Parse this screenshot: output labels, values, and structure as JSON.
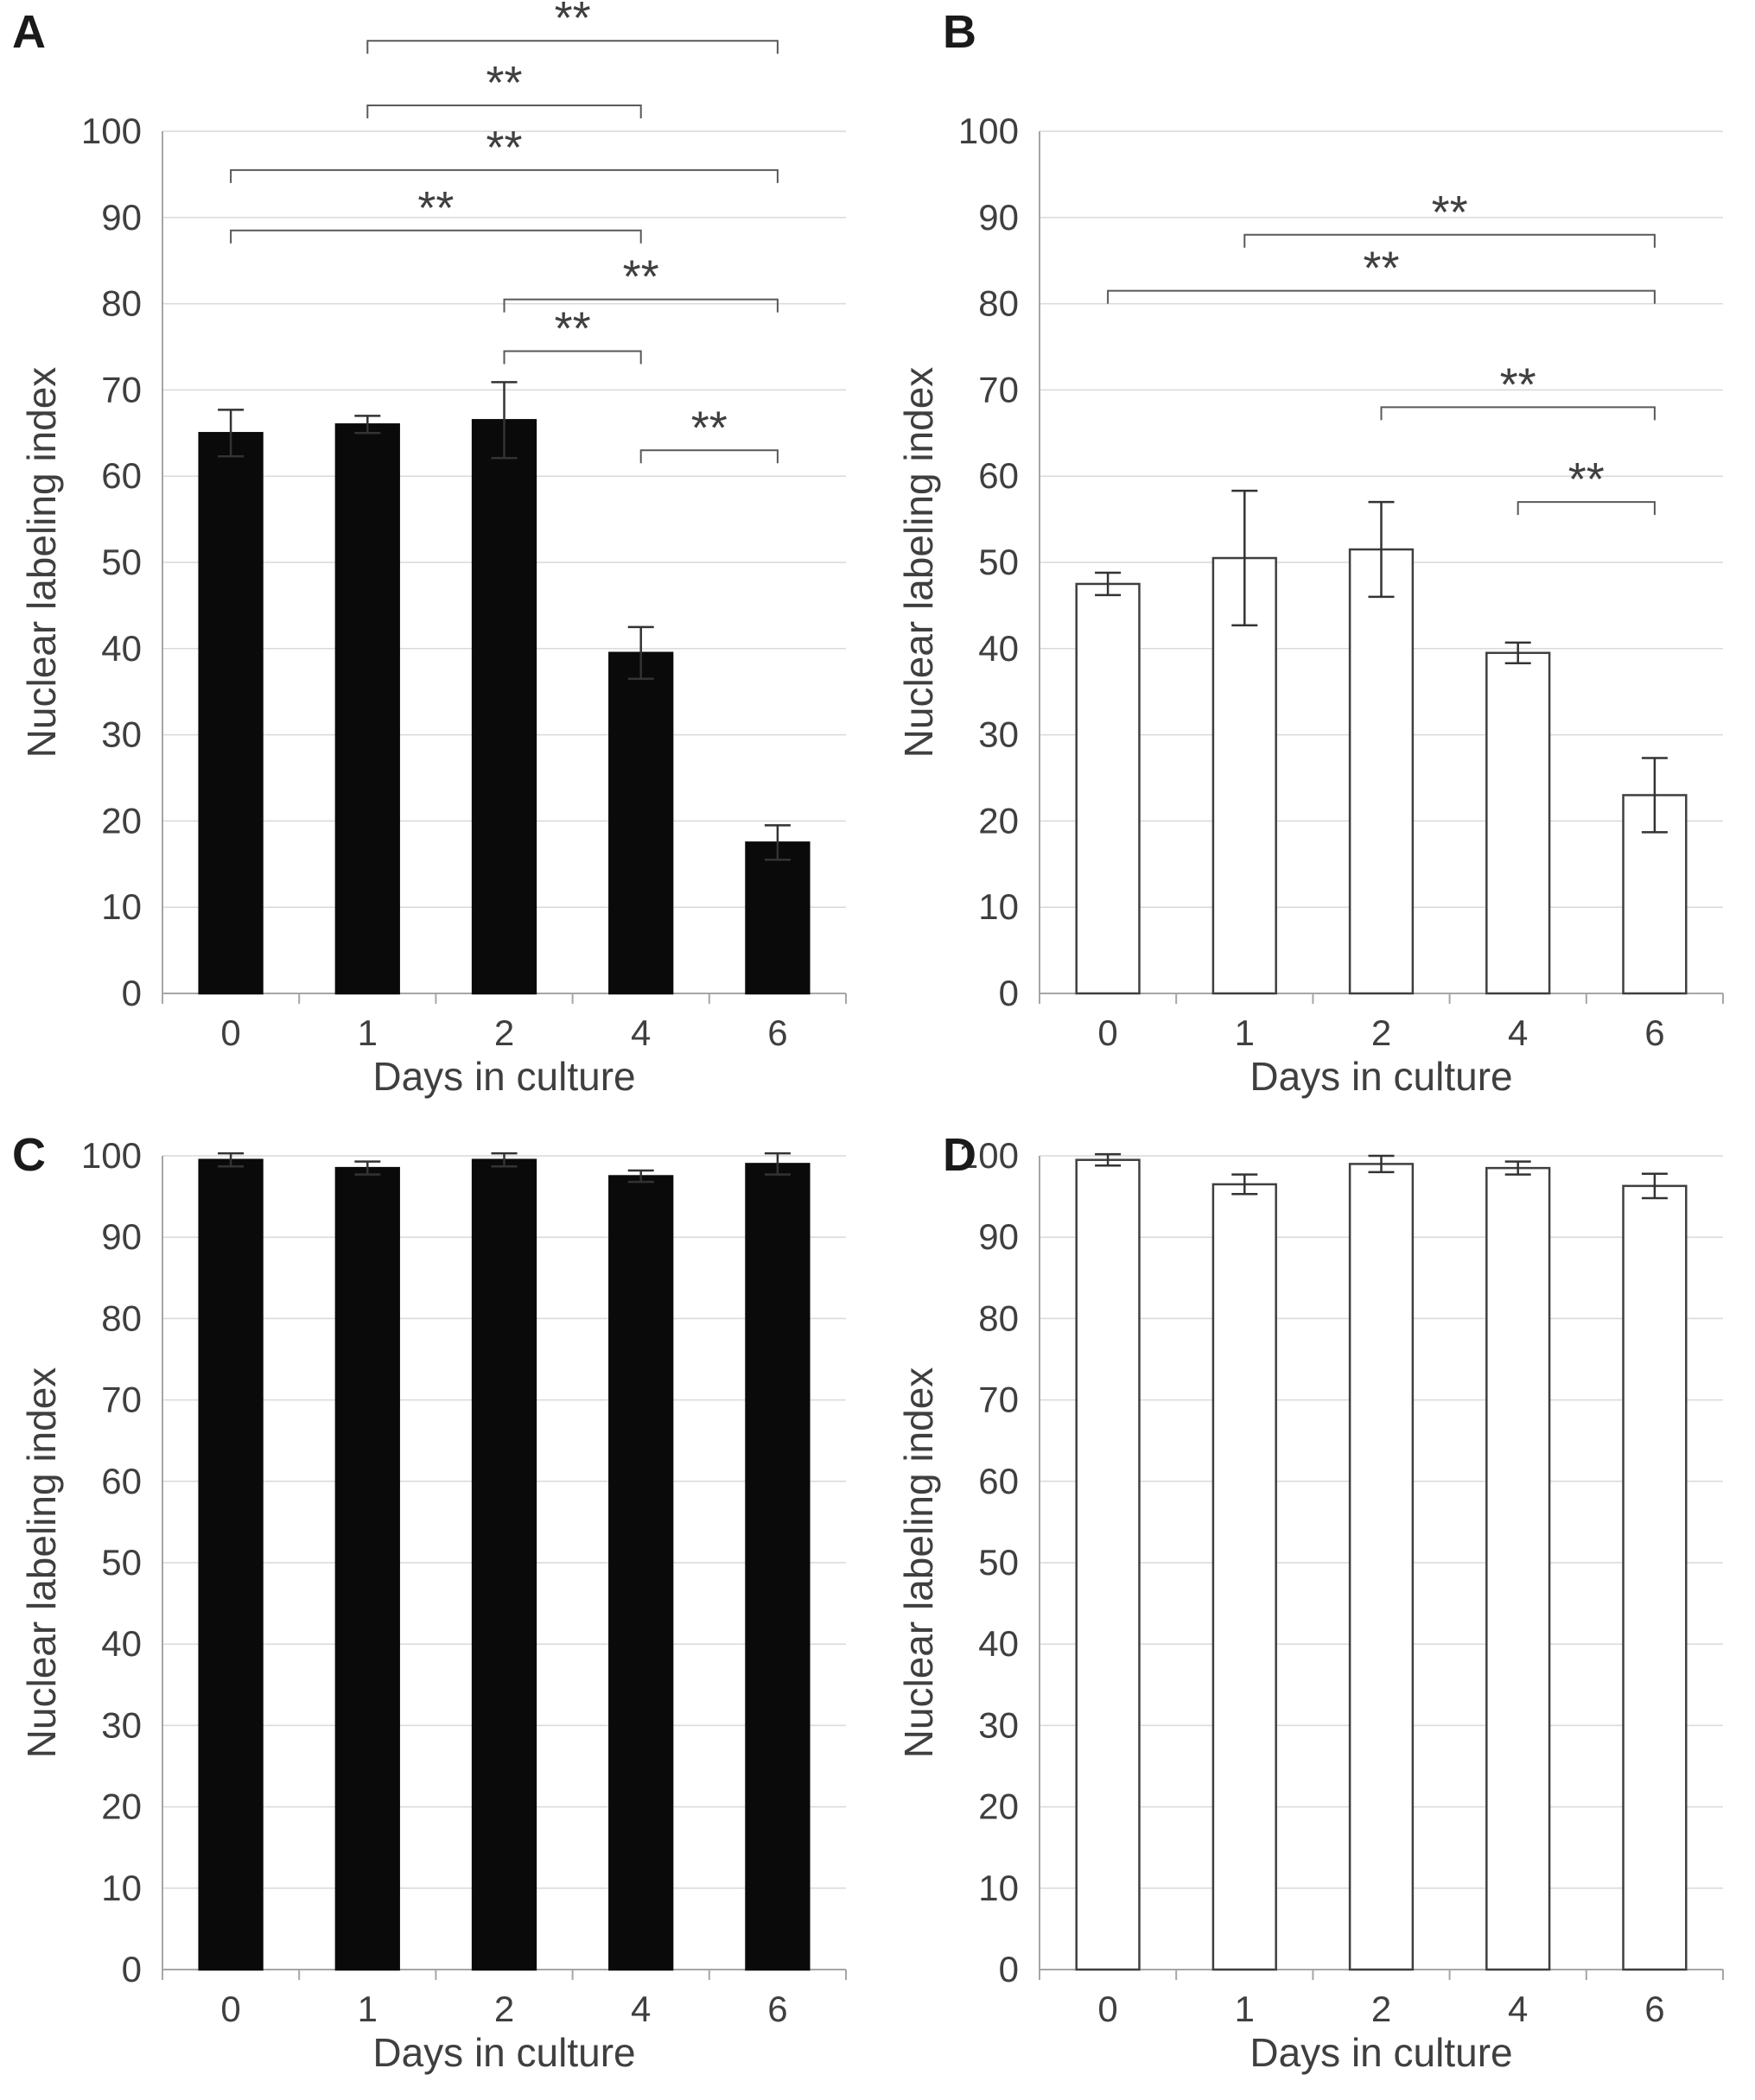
{
  "figure_title": "",
  "colors": {
    "bar_fill": "#0a0a0a",
    "bar_outline": "#3f3f3f",
    "gridline": "#d9d9d9",
    "axis": "#a6a6a6",
    "error": "#333333",
    "bracket": "#595959",
    "text": "#3f3f3f"
  },
  "chart_data": [
    {
      "panel": "A",
      "type": "bar",
      "bar_style": "filled",
      "title": "",
      "categories": [
        "0",
        "1",
        "2",
        "4",
        "6"
      ],
      "values": [
        65,
        66,
        66.5,
        39.5,
        17.5
      ],
      "errors": [
        2.7,
        1,
        4.4,
        3,
        2
      ],
      "xlabel": "Days in culture",
      "ylabel": "Nuclear labeling index",
      "ylim": [
        0,
        100
      ],
      "ytick_step": 10,
      "grid": true,
      "legend": "none",
      "significance": [
        {
          "from": "1",
          "to": "6",
          "y": 110.5,
          "label": "**"
        },
        {
          "from": "1",
          "to": "4",
          "y": 103,
          "label": "**"
        },
        {
          "from": "0",
          "to": "6",
          "y": 95.5,
          "label": "**"
        },
        {
          "from": "0",
          "to": "4",
          "y": 88.5,
          "label": "**"
        },
        {
          "from": "2",
          "to": "6",
          "y": 80.5,
          "label": "**"
        },
        {
          "from": "2",
          "to": "4",
          "y": 74.5,
          "label": "**"
        },
        {
          "from": "4",
          "to": "6",
          "y": 63,
          "label": "**"
        }
      ]
    },
    {
      "panel": "B",
      "type": "bar",
      "bar_style": "outlined",
      "title": "",
      "categories": [
        "0",
        "1",
        "2",
        "4",
        "6"
      ],
      "values": [
        47.5,
        50.5,
        51.5,
        39.5,
        23
      ],
      "errors": [
        1.3,
        7.8,
        5.5,
        1.2,
        4.3
      ],
      "xlabel": "Days in culture",
      "ylabel": "Nuclear labeling index",
      "ylim": [
        0,
        100
      ],
      "ytick_step": 10,
      "grid": true,
      "legend": "none",
      "significance": [
        {
          "from": "1",
          "to": "6",
          "y": 88,
          "label": "**"
        },
        {
          "from": "0",
          "to": "6",
          "y": 81.5,
          "label": "**"
        },
        {
          "from": "2",
          "to": "6",
          "y": 68,
          "label": "**"
        },
        {
          "from": "4",
          "to": "6",
          "y": 57,
          "label": "**"
        }
      ]
    },
    {
      "panel": "C",
      "type": "bar",
      "bar_style": "filled",
      "title": "",
      "categories": [
        "0",
        "1",
        "2",
        "4",
        "6"
      ],
      "values": [
        99.5,
        98.5,
        99.5,
        97.5,
        99
      ],
      "errors": [
        0.8,
        0.8,
        0.8,
        0.7,
        1.3
      ],
      "xlabel": "Days in culture",
      "ylabel": "Nuclear labeling index",
      "ylim": [
        0,
        100
      ],
      "ytick_step": 10,
      "grid": true,
      "legend": "none",
      "significance": []
    },
    {
      "panel": "D",
      "type": "bar",
      "bar_style": "outlined",
      "title": "",
      "categories": [
        "0",
        "1",
        "2",
        "4",
        "6"
      ],
      "values": [
        99.5,
        96.5,
        99,
        98.5,
        96.3
      ],
      "errors": [
        0.7,
        1.2,
        1,
        0.8,
        1.5
      ],
      "xlabel": "Days in culture",
      "ylabel": "Nuclear labeling index",
      "ylim": [
        0,
        100
      ],
      "ytick_step": 10,
      "grid": true,
      "legend": "none",
      "significance": []
    }
  ]
}
